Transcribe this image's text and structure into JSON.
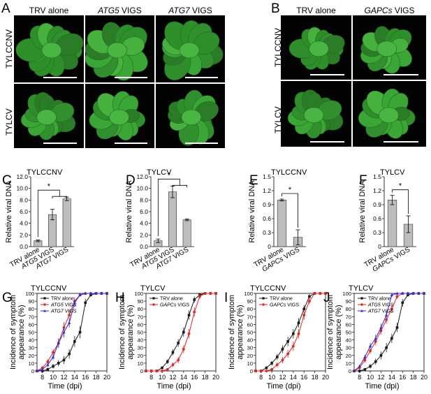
{
  "panel_A": {
    "letter": "A",
    "col_headers": [
      {
        "plain": "TRV  alone",
        "italic": "",
        "suffix": ""
      },
      {
        "plain": "",
        "italic": "ATG5",
        "suffix": " VIGS"
      },
      {
        "plain": "",
        "italic": "ATG7",
        "suffix": " VIGS"
      }
    ],
    "row_labels": [
      "TYLCCNV",
      "TYLCV"
    ]
  },
  "panel_B": {
    "letter": "B",
    "col_headers": [
      {
        "plain": "TRV  alone",
        "italic": "",
        "suffix": ""
      },
      {
        "plain": "",
        "italic": "GAPCs",
        "suffix": " VIGS"
      }
    ],
    "row_labels": [
      "TYLCCNV",
      "TYLCV"
    ]
  },
  "colors": {
    "bar_fill": "#bdbdbd",
    "trv": "#1a1a1a",
    "atg5": "#e8231f",
    "atg7": "#2b2bd9",
    "gapcs": "#e8231f",
    "plant": "#2f9b2a",
    "photo_bg": "#030303"
  },
  "chart_data": [
    {
      "panel": "C",
      "type": "bar",
      "title": "TYLCCNV",
      "ylabel": "Relative viral DNA",
      "ylim": [
        0,
        12
      ],
      "yticks": [
        "0.0",
        "2.0",
        "4.0",
        "6.0",
        "8.0",
        "10.0",
        "12.0"
      ],
      "categories": [
        {
          "plain": "TRV  alone",
          "italic": "",
          "suffix": ""
        },
        {
          "plain": "",
          "italic": "ATG5",
          "suffix": " VIGS"
        },
        {
          "plain": "",
          "italic": "ATG7",
          "suffix": " VIGS"
        }
      ],
      "values": [
        1.0,
        5.5,
        8.2
      ],
      "errors": [
        0.15,
        0.9,
        0.3
      ],
      "significance": "*"
    },
    {
      "panel": "D",
      "type": "bar",
      "title": "TYLCV",
      "ylabel": "Relative viral DNA",
      "ylim": [
        0,
        12
      ],
      "yticks": [
        "0.0",
        "2.0",
        "4.0",
        "6.0",
        "8.0",
        "10.0",
        "12.0"
      ],
      "categories": [
        {
          "plain": "TRV  alone",
          "italic": "",
          "suffix": ""
        },
        {
          "plain": "",
          "italic": "ATG5",
          "suffix": " VIGS"
        },
        {
          "plain": "",
          "italic": "ATG7",
          "suffix": " VIGS"
        }
      ],
      "values": [
        1.0,
        9.4,
        4.6
      ],
      "errors": [
        0.3,
        1.0,
        0.15
      ],
      "significance": "*"
    },
    {
      "panel": "E",
      "type": "bar",
      "title": "TYLCCNV",
      "ylabel": "Relative viral DNA",
      "ylim": [
        0,
        1.5
      ],
      "yticks": [
        "0",
        "0.3",
        "0.6",
        "0.9",
        "1.2",
        "1.5"
      ],
      "categories": [
        {
          "plain": "TRV  alone",
          "italic": "",
          "suffix": ""
        },
        {
          "plain": "",
          "italic": "GAPCs",
          "suffix": " VIGS"
        }
      ],
      "values": [
        1.0,
        0.2
      ],
      "errors": [
        0.02,
        0.16
      ],
      "significance": "*"
    },
    {
      "panel": "F",
      "type": "bar",
      "title": "TYLCV",
      "ylabel": "Relative viral DNA",
      "ylim": [
        0,
        1.5
      ],
      "yticks": [
        "0",
        "0.3",
        "0.6",
        "0.9",
        "1.2",
        "1.5"
      ],
      "categories": [
        {
          "plain": "TRV  alone",
          "italic": "",
          "suffix": ""
        },
        {
          "plain": "",
          "italic": "GAPCs",
          "suffix": " VIGS"
        }
      ],
      "values": [
        1.0,
        0.48
      ],
      "errors": [
        0.1,
        0.18
      ],
      "significance": "*"
    },
    {
      "panel": "G",
      "type": "line",
      "title": "TYLCCNV",
      "xlabel": "Time   (dpi)",
      "ylabel": "Incidence of symptom appearance (%)",
      "ylabel_lines": [
        "Incidence of symptom",
        "appearance (%)"
      ],
      "xlim": [
        7,
        20
      ],
      "ylim": [
        0,
        100
      ],
      "xticks": [
        8,
        10,
        12,
        14,
        16,
        18,
        20
      ],
      "yticks": [
        0,
        10,
        20,
        30,
        40,
        50,
        60,
        70,
        80,
        90,
        100
      ],
      "series": [
        {
          "name": "TRV alone",
          "legend": {
            "plain": "TRV alone",
            "italic": "",
            "suffix": ""
          },
          "color_key": "trv",
          "marker": "square",
          "x": [
            7,
            8,
            9,
            10,
            11,
            12,
            13,
            14,
            15,
            16,
            17,
            18,
            19,
            20
          ],
          "y": [
            0,
            0,
            2,
            6,
            10,
            14,
            22,
            38,
            50,
            88,
            98,
            100,
            100,
            100
          ],
          "err": [
            0,
            0,
            2,
            3,
            4,
            5,
            6,
            7,
            8,
            5,
            2,
            0,
            0,
            0
          ]
        },
        {
          "name": "ATG5 VIGS",
          "legend": {
            "plain": "",
            "italic": "ATG5",
            "suffix": " VIGS"
          },
          "color_key": "atg5",
          "marker": "circle",
          "x": [
            7,
            8,
            9,
            10,
            11,
            12,
            13,
            14,
            15,
            16,
            17,
            18,
            19,
            20
          ],
          "y": [
            0,
            4,
            12,
            24,
            36,
            56,
            72,
            90,
            98,
            100,
            100,
            100,
            100,
            100
          ],
          "err": [
            0,
            2,
            3,
            4,
            6,
            7,
            6,
            5,
            2,
            0,
            0,
            0,
            0,
            0
          ]
        },
        {
          "name": "ATG7 VIGS",
          "legend": {
            "plain": "",
            "italic": "ATG7",
            "suffix": " VIGS"
          },
          "color_key": "atg7",
          "marker": "triangle",
          "x": [
            7,
            8,
            9,
            10,
            11,
            12,
            13,
            14,
            15,
            16,
            17,
            18,
            19,
            20
          ],
          "y": [
            0,
            2,
            8,
            18,
            36,
            50,
            62,
            88,
            98,
            100,
            100,
            100,
            100,
            100
          ],
          "err": [
            0,
            1,
            3,
            4,
            6,
            7,
            6,
            5,
            2,
            0,
            0,
            0,
            0,
            0
          ]
        }
      ]
    },
    {
      "panel": "H",
      "type": "line",
      "title": "TYLCV",
      "xlabel": "Time   (dpi)",
      "ylabel": "Incidence of symptom appearance (%)",
      "ylabel_lines": [
        "Incidence of symptom",
        "appearance (%)"
      ],
      "xlim": [
        7,
        20
      ],
      "ylim": [
        0,
        100
      ],
      "xticks": [
        8,
        10,
        12,
        14,
        16,
        18,
        20
      ],
      "yticks": [
        0,
        10,
        20,
        30,
        40,
        50,
        60,
        70,
        80,
        90,
        100
      ],
      "series": [
        {
          "name": "TRV alone",
          "legend": {
            "plain": "TRV alone",
            "italic": "",
            "suffix": ""
          },
          "color_key": "trv",
          "marker": "square",
          "x": [
            7,
            8,
            9,
            10,
            11,
            12,
            13,
            14,
            15,
            16,
            17,
            18,
            19,
            20
          ],
          "y": [
            0,
            0,
            0,
            4,
            12,
            24,
            36,
            50,
            72,
            92,
            98,
            100,
            100,
            100
          ],
          "err": [
            0,
            0,
            0,
            2,
            3,
            4,
            5,
            6,
            6,
            4,
            2,
            0,
            0,
            0
          ]
        },
        {
          "name": "GAPCs VIGS",
          "legend": {
            "plain": "",
            "italic": "GAPCs",
            "suffix": " VIGS"
          },
          "color_key": "gapcs",
          "marker": "circle",
          "x": [
            7,
            8,
            9,
            10,
            11,
            12,
            13,
            14,
            15,
            16,
            17,
            18,
            19,
            20
          ],
          "y": [
            0,
            0,
            0,
            0,
            2,
            8,
            14,
            28,
            48,
            76,
            96,
            100,
            100,
            100
          ],
          "err": [
            0,
            0,
            0,
            0,
            1,
            3,
            4,
            5,
            6,
            6,
            3,
            0,
            0,
            0
          ]
        }
      ]
    },
    {
      "panel": "I",
      "type": "line",
      "title": "TYLCCNV",
      "xlabel": "Time   (dpi)",
      "ylabel": "Incidence of symptom appearance (%)",
      "ylabel_lines": [
        "Incidence of symptom",
        "appearance (%)"
      ],
      "xlim": [
        7,
        20
      ],
      "ylim": [
        0,
        100
      ],
      "xticks": [
        8,
        10,
        12,
        14,
        16,
        18,
        20
      ],
      "yticks": [
        0,
        10,
        20,
        30,
        40,
        50,
        60,
        70,
        80,
        90,
        100
      ],
      "series": [
        {
          "name": "TRV alone",
          "legend": {
            "plain": "TRV alone",
            "italic": "",
            "suffix": ""
          },
          "color_key": "trv",
          "marker": "square",
          "x": [
            7,
            8,
            9,
            10,
            11,
            12,
            13,
            14,
            15,
            16,
            17,
            18,
            19,
            20
          ],
          "y": [
            0,
            0,
            4,
            10,
            18,
            28,
            38,
            48,
            62,
            80,
            96,
            100,
            100,
            100
          ],
          "err": [
            0,
            0,
            2,
            3,
            4,
            5,
            6,
            6,
            6,
            5,
            3,
            0,
            0,
            0
          ]
        },
        {
          "name": "GAPCs VIGS",
          "legend": {
            "plain": "",
            "italic": "GAPCs",
            "suffix": " VIGS"
          },
          "color_key": "gapcs",
          "marker": "circle",
          "x": [
            7,
            8,
            9,
            10,
            11,
            12,
            13,
            14,
            15,
            16,
            17,
            18,
            19,
            20
          ],
          "y": [
            0,
            0,
            0,
            2,
            8,
            14,
            22,
            32,
            48,
            72,
            90,
            100,
            100,
            100
          ],
          "err": [
            0,
            0,
            0,
            1,
            3,
            4,
            5,
            6,
            6,
            6,
            4,
            0,
            0,
            0
          ]
        }
      ]
    },
    {
      "panel": "J",
      "type": "line",
      "title": "TYLCV",
      "xlabel": "Time   (dpi)",
      "ylabel": "Incidence of symptom appearance (%)",
      "ylabel_lines": [
        "Incidence of symptom",
        "appearance (%)"
      ],
      "xlim": [
        7,
        20
      ],
      "ylim": [
        0,
        100
      ],
      "xticks": [
        8,
        10,
        12,
        14,
        16,
        18,
        20
      ],
      "yticks": [
        0,
        10,
        20,
        30,
        40,
        50,
        60,
        70,
        80,
        90,
        100
      ],
      "series": [
        {
          "name": "TRV alone",
          "legend": {
            "plain": "TRV alone",
            "italic": "",
            "suffix": ""
          },
          "color_key": "trv",
          "marker": "square",
          "x": [
            7,
            8,
            9,
            10,
            11,
            12,
            13,
            14,
            15,
            16,
            17,
            18,
            19,
            20
          ],
          "y": [
            0,
            0,
            2,
            6,
            12,
            20,
            30,
            42,
            56,
            88,
            98,
            100,
            100,
            100
          ],
          "err": [
            0,
            0,
            1,
            3,
            4,
            5,
            6,
            6,
            6,
            5,
            2,
            0,
            0,
            0
          ]
        },
        {
          "name": "ATG5 VIGS",
          "legend": {
            "plain": "",
            "italic": "ATG5",
            "suffix": " VIGS"
          },
          "color_key": "atg5",
          "marker": "circle",
          "x": [
            7,
            8,
            9,
            10,
            11,
            12,
            13,
            14,
            15,
            16,
            17,
            18,
            19,
            20
          ],
          "y": [
            0,
            4,
            14,
            26,
            38,
            52,
            66,
            80,
            96,
            100,
            100,
            100,
            100,
            100
          ],
          "err": [
            0,
            2,
            3,
            4,
            5,
            5,
            5,
            5,
            3,
            0,
            0,
            0,
            0,
            0
          ]
        },
        {
          "name": "ATG7 VIGS",
          "legend": {
            "plain": "",
            "italic": "ATG7",
            "suffix": " VIGS"
          },
          "color_key": "atg7",
          "marker": "triangle",
          "x": [
            7,
            8,
            9,
            10,
            11,
            12,
            13,
            14,
            15,
            16,
            17,
            18,
            19,
            20
          ],
          "y": [
            0,
            6,
            18,
            32,
            42,
            56,
            72,
            98,
            100,
            100,
            100,
            100,
            100,
            100
          ],
          "err": [
            0,
            2,
            3,
            4,
            5,
            5,
            5,
            3,
            0,
            0,
            0,
            0,
            0,
            0
          ]
        }
      ]
    }
  ]
}
